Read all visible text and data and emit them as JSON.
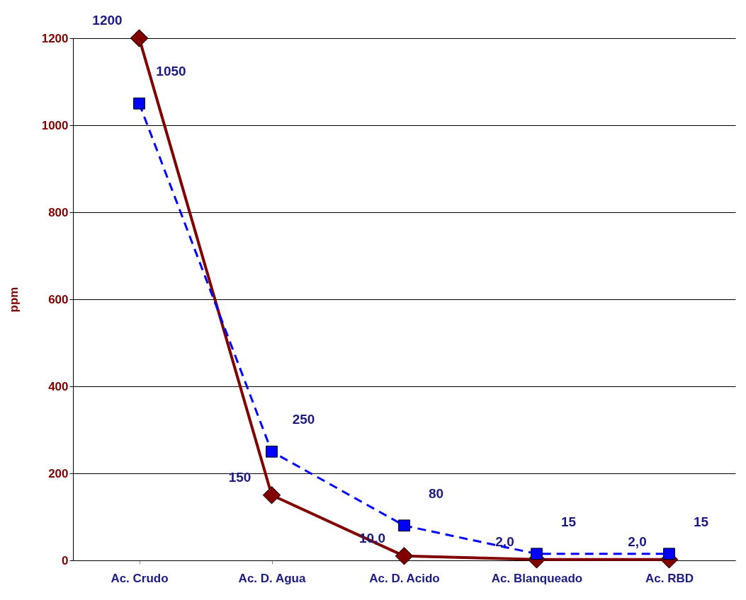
{
  "chart_data": {
    "type": "line",
    "ylabel": "ppm",
    "categories": [
      "Ac. Crudo",
      "Ac. D. Agua",
      "Ac. D. Acido",
      "Ac. Blanqueado",
      "Ac. RBD"
    ],
    "series": [
      {
        "color": "#800000",
        "marker": "diamond",
        "line_style": "solid",
        "values": [
          1200,
          150,
          10,
          2,
          2
        ],
        "value_labels": [
          "1200",
          "150",
          "10,0",
          "2,0",
          "2,0"
        ]
      },
      {
        "color": "#0000ff",
        "marker": "square",
        "line_style": "dashed",
        "values": [
          1050,
          250,
          80,
          15,
          15
        ],
        "value_labels": [
          "1050",
          "250",
          "80",
          "15",
          "15"
        ]
      }
    ],
    "ylim": [
      0,
      1200
    ],
    "yticks": [
      0,
      200,
      400,
      600,
      800,
      1000,
      1200
    ],
    "grid": "y"
  }
}
